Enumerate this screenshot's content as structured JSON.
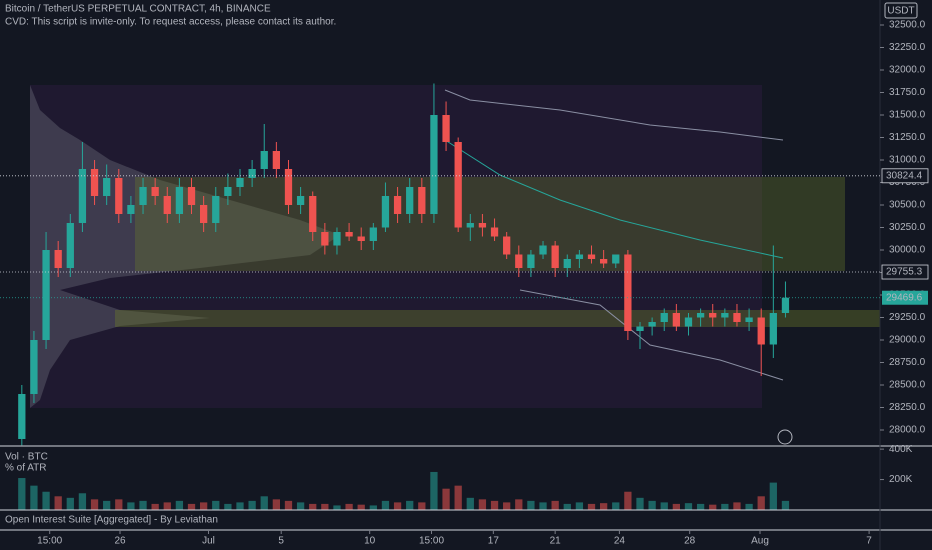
{
  "chart_data": {
    "type": "candlestick",
    "title": "Bitcoin / TetherUS PERPETUAL CONTRACT, 4h, BINANCE",
    "subtitle": "CVD: This script is invite-only. To request access, please contact its author.",
    "currency": "USDT",
    "x": [
      0,
      1,
      2,
      3,
      4,
      5,
      6,
      7,
      8,
      9,
      10,
      11,
      12,
      13,
      14,
      15,
      16,
      17,
      18,
      19,
      20,
      21,
      22,
      23,
      24,
      25,
      26,
      27,
      28,
      29,
      30,
      31,
      32,
      33,
      34,
      35,
      36,
      37,
      38,
      39,
      40,
      41,
      42,
      43,
      44,
      45,
      46,
      47,
      48,
      49,
      50,
      51,
      52,
      53,
      54,
      55,
      56,
      57,
      58,
      59,
      60,
      61,
      62,
      63
    ],
    "open": [
      27900,
      28400,
      29000,
      30000,
      29800,
      30300,
      30900,
      30600,
      30800,
      30400,
      30500,
      30700,
      30600,
      30400,
      30700,
      30500,
      30300,
      30600,
      30700,
      30800,
      30900,
      31100,
      30900,
      30500,
      30600,
      30200,
      30050,
      30200,
      30150,
      30100,
      30250,
      30600,
      30400,
      30700,
      30400,
      31500,
      31200,
      30250,
      30300,
      30250,
      30150,
      29950,
      29800,
      29950,
      30050,
      29800,
      29900,
      29950,
      29900,
      29850,
      29950,
      29100,
      29150,
      29200,
      29300,
      29150,
      29250,
      29300,
      29250,
      29300,
      29200,
      29250,
      28950,
      29300
    ],
    "high": [
      28500,
      29100,
      30200,
      30100,
      30400,
      31200,
      31000,
      30950,
      30900,
      30600,
      30800,
      30800,
      30700,
      30800,
      30800,
      30600,
      30700,
      30850,
      30900,
      31000,
      31400,
      31200,
      31000,
      30700,
      30650,
      30300,
      30250,
      30300,
      30250,
      30300,
      30750,
      30700,
      30800,
      30800,
      31850,
      31650,
      31250,
      30400,
      30400,
      30350,
      30200,
      30050,
      30000,
      30100,
      30100,
      29950,
      30000,
      30050,
      30000,
      29950,
      30000,
      29200,
      29250,
      29350,
      29400,
      29300,
      29350,
      29400,
      29350,
      29400,
      29350,
      29350,
      30050,
      29650
    ],
    "low": [
      27830,
      28300,
      28900,
      29700,
      29700,
      30200,
      30500,
      30500,
      30300,
      30300,
      30400,
      30500,
      30300,
      30300,
      30400,
      30200,
      30200,
      30500,
      30600,
      30700,
      30800,
      30800,
      30400,
      30400,
      30100,
      29950,
      29950,
      30100,
      30000,
      30000,
      30200,
      30300,
      30300,
      30300,
      30300,
      31100,
      30200,
      30100,
      30150,
      30100,
      29900,
      29700,
      29700,
      29900,
      29700,
      29700,
      29800,
      29850,
      29800,
      29800,
      29000,
      28900,
      29050,
      29100,
      29100,
      29050,
      29150,
      29150,
      29150,
      29150,
      29100,
      28600,
      28800,
      29250
    ],
    "close": [
      28400,
      29000,
      30000,
      29800,
      30300,
      30900,
      30600,
      30800,
      30400,
      30500,
      30700,
      30600,
      30400,
      30700,
      30500,
      30300,
      30600,
      30700,
      30800,
      30900,
      31100,
      30900,
      30500,
      30600,
      30200,
      30050,
      30200,
      30150,
      30100,
      30250,
      30600,
      30400,
      30700,
      30400,
      31500,
      31200,
      30250,
      30300,
      30250,
      30150,
      29950,
      29800,
      29950,
      30050,
      29800,
      29900,
      29950,
      29900,
      29850,
      29950,
      29100,
      29150,
      29200,
      29300,
      29150,
      29250,
      29300,
      29250,
      29300,
      29200,
      29250,
      28950,
      29300,
      29470
    ],
    "up_color": "#26a69a",
    "down_color": "#ef5350",
    "xlim": [
      -1.8,
      70.8
    ],
    "xticks": [
      {
        "value": 2.3,
        "label": "15:00"
      },
      {
        "value": 8.1,
        "label": "26"
      },
      {
        "value": 15.4,
        "label": "Jul"
      },
      {
        "value": 21.4,
        "label": "5"
      },
      {
        "value": 28.7,
        "label": "10"
      },
      {
        "value": 33.8,
        "label": "15:00"
      },
      {
        "value": 38.9,
        "label": "17"
      },
      {
        "value": 44,
        "label": "21"
      },
      {
        "value": 49.3,
        "label": "24"
      },
      {
        "value": 55.1,
        "label": "28"
      },
      {
        "value": 60.9,
        "label": "Aug"
      },
      {
        "value": 69.9,
        "label": "7"
      }
    ],
    "ylim": [
      27833.3,
      32777.8
    ],
    "yticks": [
      {
        "value": 28000,
        "label": "28000.0"
      },
      {
        "value": 28250,
        "label": "28250.0"
      },
      {
        "value": 28500,
        "label": "28500.0"
      },
      {
        "value": 28750,
        "label": "28750.0"
      },
      {
        "value": 29000,
        "label": "29000.0"
      },
      {
        "value": 29250,
        "label": "29250.0"
      },
      {
        "value": 29500,
        "label": "29500.0"
      },
      {
        "value": 29750,
        "label": "29750.0"
      },
      {
        "value": 30000,
        "label": "30000.0"
      },
      {
        "value": 30250,
        "label": "30250.0"
      },
      {
        "value": 30500,
        "label": "30500.0"
      },
      {
        "value": 30750,
        "label": "30750.0"
      },
      {
        "value": 31000,
        "label": "31000.0"
      },
      {
        "value": 31250,
        "label": "31250.0"
      },
      {
        "value": 31500,
        "label": "31500.0"
      },
      {
        "value": 31750,
        "label": "31750.0"
      },
      {
        "value": 32000,
        "label": "32000.0"
      },
      {
        "value": 32250,
        "label": "32250.0"
      },
      {
        "value": 32500,
        "label": "32500.0"
      }
    ],
    "price_lines": [
      30824.4,
      29755.3
    ],
    "last_price": 29469.6,
    "volume": {
      "label": "Vol · BTC",
      "sublabel": "% of ATR",
      "values": [
        210,
        160,
        120,
        90,
        80,
        110,
        70,
        60,
        70,
        50,
        60,
        40,
        50,
        60,
        40,
        50,
        60,
        40,
        50,
        60,
        90,
        70,
        60,
        50,
        40,
        40,
        30,
        40,
        35,
        30,
        60,
        50,
        60,
        50,
        250,
        140,
        160,
        80,
        70,
        60,
        50,
        70,
        60,
        50,
        60,
        40,
        50,
        40,
        45,
        50,
        120,
        80,
        60,
        50,
        40,
        45,
        40,
        35,
        40,
        50,
        40,
        90,
        180,
        60
      ],
      "ylim": [
        0,
        414
      ],
      "yticks": [
        {
          "value": 400,
          "label": "400K"
        },
        {
          "value": 200,
          "label": "200K"
        }
      ]
    },
    "indicator_label": "Open Interest Suite [Aggregated] - By Leviathan"
  }
}
